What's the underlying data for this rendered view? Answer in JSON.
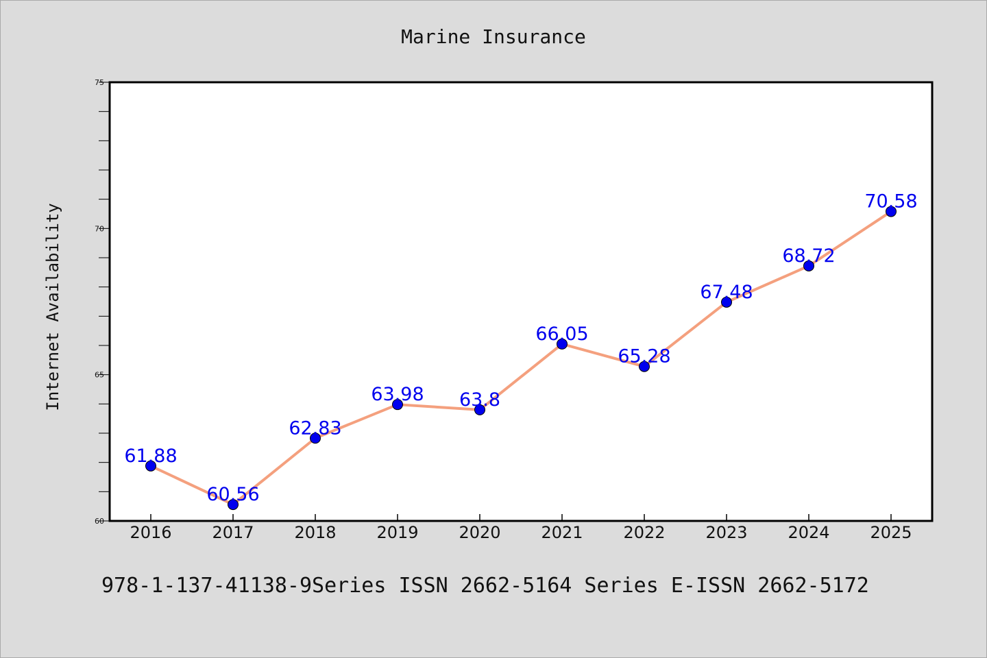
{
  "chart_data": {
    "type": "line",
    "title": "Marine Insurance",
    "ylabel": "Internet Availability",
    "xlabel": "",
    "categories": [
      "2016",
      "2017",
      "2018",
      "2019",
      "2020",
      "2021",
      "2022",
      "2023",
      "2024",
      "2025"
    ],
    "series": [
      {
        "values": [
          61.88,
          60.56,
          62.83,
          63.98,
          63.8,
          66.05,
          65.28,
          67.48,
          68.72,
          70.58
        ],
        "labels": [
          "61.88",
          "60.56",
          "62.83",
          "63.98",
          "63.8",
          "66.05",
          "65.28",
          "67.48",
          "68.72",
          "70.58"
        ],
        "line_color": "#f4a07e",
        "marker_color": "#0000ee"
      }
    ],
    "ylim": [
      60,
      75
    ],
    "y_ticks": [
      "60",
      "65",
      "70",
      "75"
    ],
    "y_minor_step": 1,
    "grid": false,
    "label_color": "#0000ee"
  },
  "footer": "978-1-137-41138-9Series ISSN 2662-5164 Series E-ISSN 2662-5172",
  "colors": {
    "background": "#dcdcdc",
    "plot_background": "#ffffff",
    "axis": "#000000"
  }
}
